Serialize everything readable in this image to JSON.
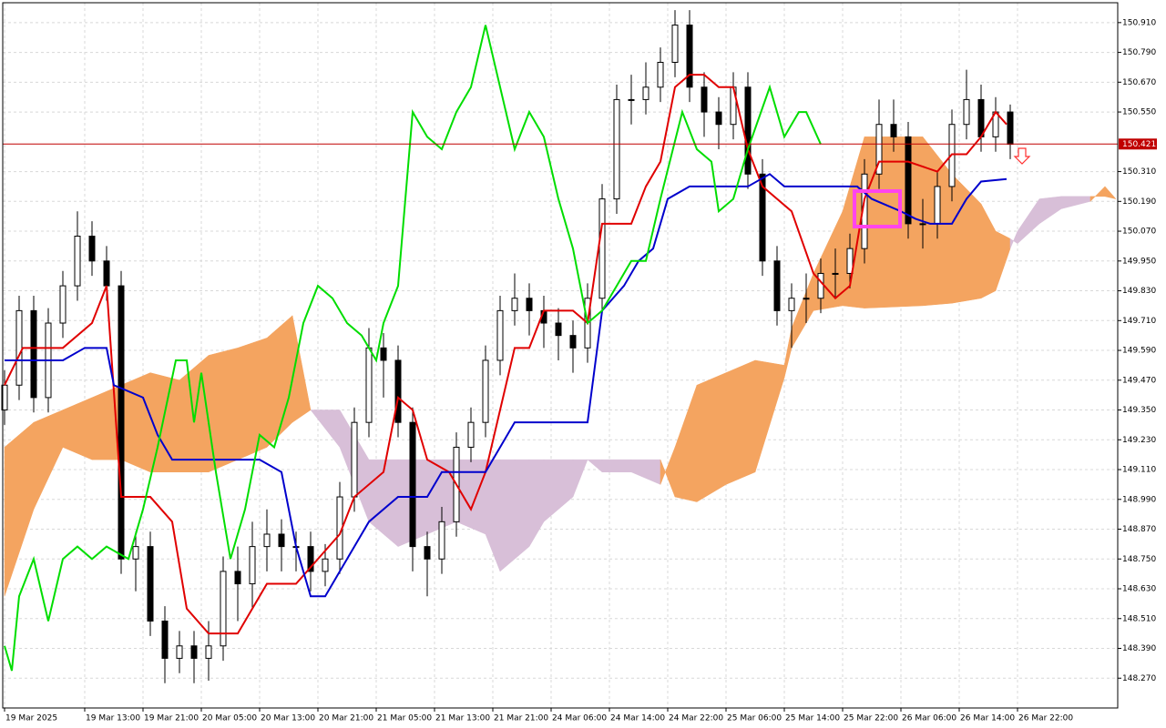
{
  "chart_data": {
    "type": "candlestick",
    "xlim": [
      -0.25,
      152.75
    ],
    "ylim": [
      148.15,
      150.99
    ],
    "grid": true,
    "yticks": [
      {
        "value": 150.91,
        "label": "150.910"
      },
      {
        "value": 150.79,
        "label": "150.790"
      },
      {
        "value": 150.67,
        "label": "150.670"
      },
      {
        "value": 150.55,
        "label": "150.550"
      },
      {
        "value": 150.31,
        "label": "150.310"
      },
      {
        "value": 150.19,
        "label": "150.190"
      },
      {
        "value": 150.07,
        "label": "150.070"
      },
      {
        "value": 149.95,
        "label": "149.950"
      },
      {
        "value": 149.83,
        "label": "149.830"
      },
      {
        "value": 149.71,
        "label": "149.710"
      },
      {
        "value": 149.59,
        "label": "149.590"
      },
      {
        "value": 149.47,
        "label": "149.470"
      },
      {
        "value": 149.35,
        "label": "149.350"
      },
      {
        "value": 149.23,
        "label": "149.230"
      },
      {
        "value": 149.11,
        "label": "149.110"
      },
      {
        "value": 148.99,
        "label": "148.990"
      },
      {
        "value": 148.87,
        "label": "148.870"
      },
      {
        "value": 148.75,
        "label": "148.750"
      },
      {
        "value": 148.63,
        "label": "148.630"
      },
      {
        "value": 148.51,
        "label": "148.510"
      },
      {
        "value": 148.39,
        "label": "148.390"
      },
      {
        "value": 148.27,
        "label": "148.270"
      }
    ],
    "xticks": [
      {
        "value": 0,
        "label": "19 Mar 2025"
      },
      {
        "value": 11,
        "label": "19 Mar 13:00"
      },
      {
        "value": 19,
        "label": "19 Mar 21:00"
      },
      {
        "value": 27,
        "label": "20 Mar 05:00"
      },
      {
        "value": 35,
        "label": "20 Mar 13:00"
      },
      {
        "value": 43,
        "label": "20 Mar 21:00"
      },
      {
        "value": 51,
        "label": "21 Mar 05:00"
      },
      {
        "value": 59,
        "label": "21 Mar 13:00"
      },
      {
        "value": 67,
        "label": "21 Mar 21:00"
      },
      {
        "value": 75,
        "label": "24 Mar 06:00"
      },
      {
        "value": 83,
        "label": "24 Mar 14:00"
      },
      {
        "value": 91,
        "label": "24 Mar 22:00"
      },
      {
        "value": 99,
        "label": "25 Mar 06:00"
      },
      {
        "value": 107,
        "label": "25 Mar 14:00"
      },
      {
        "value": 115,
        "label": "25 Mar 22:00"
      },
      {
        "value": 123,
        "label": "26 Mar 06:00"
      },
      {
        "value": 131,
        "label": "26 Mar 14:00"
      },
      {
        "value": 139,
        "label": "26 Mar 22:00"
      }
    ],
    "current_price": {
      "value": 150.421,
      "label": "150.421",
      "color": "#c00000"
    },
    "up_color": "#ffffff",
    "down_color": "#000000",
    "x": [
      0,
      2,
      4,
      6,
      8,
      10,
      12,
      14,
      16,
      18,
      20,
      22,
      24,
      26,
      28,
      30,
      32,
      34,
      36,
      38,
      40,
      42,
      44,
      46,
      48,
      50,
      52,
      54,
      56,
      58,
      60,
      62,
      64,
      66,
      68,
      70,
      72,
      74,
      76,
      78,
      80,
      82,
      84,
      86,
      88,
      90,
      92,
      94,
      96,
      98,
      100,
      102,
      104,
      106,
      108,
      110,
      112,
      114,
      116,
      118,
      120,
      122,
      124,
      126,
      128,
      130,
      132,
      134,
      136,
      138
    ],
    "open": [
      149.35,
      149.45,
      149.75,
      149.4,
      149.7,
      149.85,
      150.05,
      149.95,
      149.85,
      148.75,
      148.8,
      148.5,
      148.35,
      148.4,
      148.35,
      148.4,
      148.7,
      148.65,
      148.8,
      148.85,
      148.8,
      148.8,
      148.7,
      148.75,
      149.0,
      149.3,
      149.6,
      149.55,
      149.3,
      148.8,
      148.75,
      148.9,
      149.2,
      149.3,
      149.55,
      149.75,
      149.8,
      149.75,
      149.7,
      149.65,
      149.6,
      149.8,
      150.2,
      150.6,
      150.6,
      150.65,
      150.75,
      150.9,
      150.65,
      150.55,
      150.5,
      150.65,
      150.3,
      149.95,
      149.75,
      149.8,
      149.8,
      149.9,
      149.9,
      150.0,
      150.3,
      150.5,
      150.45,
      150.1,
      150.1,
      150.25,
      150.5,
      150.6,
      150.45,
      150.55
    ],
    "high": [
      149.51,
      149.81,
      149.81,
      149.76,
      149.91,
      150.15,
      150.11,
      150.01,
      149.91,
      148.86,
      148.86,
      148.56,
      148.46,
      148.46,
      148.5,
      148.76,
      148.8,
      148.9,
      148.95,
      148.91,
      148.86,
      148.86,
      148.81,
      149.06,
      149.36,
      149.68,
      149.66,
      149.61,
      149.36,
      148.86,
      148.96,
      149.26,
      149.36,
      149.61,
      149.81,
      149.9,
      149.86,
      149.81,
      149.76,
      149.71,
      149.86,
      150.26,
      150.66,
      150.7,
      150.75,
      150.81,
      150.96,
      150.96,
      150.71,
      150.61,
      150.71,
      150.71,
      150.36,
      150.01,
      149.86,
      149.9,
      149.96,
      150.0,
      150.06,
      150.36,
      150.6,
      150.6,
      150.51,
      150.2,
      150.31,
      150.56,
      150.72,
      150.66,
      150.61,
      150.58
    ],
    "low": [
      149.29,
      149.39,
      149.34,
      149.34,
      149.64,
      149.79,
      149.89,
      149.79,
      148.69,
      148.62,
      148.44,
      148.25,
      148.29,
      148.25,
      148.26,
      148.34,
      148.5,
      148.55,
      148.7,
      148.7,
      148.7,
      148.62,
      148.64,
      148.69,
      148.94,
      149.24,
      149.4,
      149.24,
      148.7,
      148.6,
      148.69,
      148.84,
      149.14,
      149.24,
      149.49,
      149.69,
      149.65,
      149.6,
      149.55,
      149.5,
      149.54,
      149.74,
      150.14,
      150.5,
      150.54,
      150.59,
      150.69,
      150.59,
      150.45,
      150.4,
      150.44,
      150.24,
      149.89,
      149.69,
      149.6,
      149.7,
      149.74,
      149.8,
      149.84,
      149.94,
      150.24,
      150.39,
      150.04,
      150.0,
      150.04,
      150.19,
      150.44,
      150.39,
      150.39,
      150.36
    ],
    "close": [
      149.45,
      149.75,
      149.4,
      149.7,
      149.85,
      150.05,
      149.95,
      149.85,
      148.75,
      148.8,
      148.5,
      148.35,
      148.4,
      148.35,
      148.4,
      148.7,
      148.65,
      148.8,
      148.85,
      148.8,
      148.8,
      148.7,
      148.75,
      149.0,
      149.3,
      149.6,
      149.55,
      149.3,
      148.8,
      148.75,
      148.9,
      149.2,
      149.3,
      149.55,
      149.75,
      149.8,
      149.75,
      149.7,
      149.65,
      149.6,
      149.8,
      150.2,
      150.6,
      150.6,
      150.65,
      150.75,
      150.9,
      150.65,
      150.55,
      150.5,
      150.65,
      150.3,
      149.95,
      149.75,
      149.8,
      149.8,
      149.9,
      149.9,
      150.0,
      150.3,
      150.5,
      150.45,
      150.1,
      150.1,
      150.25,
      150.5,
      150.6,
      150.45,
      150.55,
      150.42
    ],
    "cloud": {
      "up_color": "#f4a460",
      "down_color": "#d8bfd8",
      "x": [
        0,
        4,
        8,
        12,
        16,
        20,
        24,
        28,
        32,
        36,
        39.5,
        42,
        46,
        50,
        54,
        58,
        62,
        66,
        68,
        70,
        72,
        74,
        78,
        80,
        82,
        86,
        90,
        92,
        95,
        99,
        103,
        107,
        108,
        111,
        115,
        118,
        126,
        130,
        134,
        136,
        138,
        139,
        142,
        145,
        149,
        151,
        152.5
      ],
      "span_a": [
        149.2,
        149.3,
        149.35,
        149.4,
        149.45,
        149.5,
        149.47,
        149.57,
        149.6,
        149.64,
        149.73,
        149.35,
        149.2,
        148.9,
        148.8,
        148.85,
        148.9,
        148.85,
        148.7,
        148.75,
        148.8,
        148.9,
        149.0,
        149.15,
        149.1,
        149.1,
        149.05,
        149.2,
        149.45,
        149.5,
        149.55,
        149.53,
        149.68,
        149.9,
        150.15,
        150.45,
        150.45,
        150.3,
        150.18,
        150.07,
        150.04,
        150.02,
        150.1,
        150.16,
        150.19,
        150.25,
        150.2
      ],
      "span_b": [
        148.6,
        148.95,
        149.2,
        149.15,
        149.15,
        149.1,
        149.1,
        149.1,
        149.15,
        149.2,
        149.3,
        149.35,
        149.35,
        149.15,
        149.15,
        149.15,
        149.15,
        149.15,
        149.15,
        149.15,
        149.15,
        149.15,
        149.15,
        149.15,
        149.15,
        149.15,
        149.15,
        149.0,
        148.98,
        149.05,
        149.1,
        149.48,
        149.6,
        149.75,
        149.77,
        149.76,
        149.77,
        149.78,
        149.8,
        149.83,
        150.0,
        150.07,
        150.2,
        150.21,
        150.21,
        150.21,
        150.2
      ]
    },
    "lines": [
      {
        "color": "#e00000",
        "x": [
          0,
          2.5,
          8,
          12,
          14,
          16,
          20,
          23,
          25,
          28,
          32,
          36,
          40,
          43,
          46,
          48,
          52,
          54,
          56,
          58,
          61,
          64,
          66,
          68,
          70,
          72,
          74,
          78,
          80,
          82,
          86,
          88,
          90,
          92,
          94,
          96,
          98,
          100,
          102,
          104,
          108,
          111,
          114,
          116,
          118,
          120,
          124,
          128,
          130,
          132,
          134,
          136,
          137.5
        ],
        "values": [
          149.45,
          149.6,
          149.6,
          149.7,
          149.85,
          149.0,
          149.0,
          148.9,
          148.55,
          148.45,
          148.45,
          148.65,
          148.65,
          148.75,
          148.85,
          149.0,
          149.1,
          149.4,
          149.35,
          149.15,
          149.1,
          148.95,
          149.1,
          149.35,
          149.6,
          149.6,
          149.75,
          149.75,
          149.7,
          150.1,
          150.1,
          150.25,
          150.35,
          150.65,
          150.7,
          150.7,
          150.65,
          150.65,
          150.4,
          150.25,
          150.15,
          149.9,
          149.8,
          149.85,
          150.2,
          150.35,
          150.35,
          150.31,
          150.38,
          150.38,
          150.45,
          150.55,
          150.5
        ]
      },
      {
        "color": "#0000cc",
        "x": [
          0,
          4,
          8,
          11,
          14,
          15,
          19,
          21,
          23,
          35,
          38,
          40,
          42,
          44,
          46,
          48,
          50,
          54,
          58,
          60,
          66,
          68,
          70,
          80,
          82,
          85,
          87,
          89,
          91,
          94,
          100,
          102,
          105,
          107,
          117,
          119,
          123,
          125,
          127,
          130,
          132,
          134,
          137.5
        ],
        "values": [
          149.55,
          149.55,
          149.55,
          149.6,
          149.6,
          149.45,
          149.4,
          149.25,
          149.15,
          149.15,
          149.1,
          148.8,
          148.6,
          148.6,
          148.7,
          148.8,
          148.9,
          149.0,
          149.0,
          149.1,
          149.1,
          149.2,
          149.3,
          149.3,
          149.75,
          149.85,
          149.95,
          150.0,
          150.2,
          150.25,
          150.25,
          150.25,
          150.3,
          150.25,
          150.25,
          150.2,
          150.15,
          150.12,
          150.1,
          150.1,
          150.2,
          150.27,
          150.28
        ]
      },
      {
        "color": "#00dd00",
        "x": [
          0,
          1,
          2,
          4,
          6,
          8,
          10,
          12,
          14,
          17,
          19,
          21,
          23.5,
          25,
          26,
          27,
          29,
          31,
          33,
          35,
          37,
          39,
          41,
          43,
          45,
          47,
          49,
          51,
          52,
          54,
          56,
          58,
          60,
          62,
          64,
          66,
          68,
          70,
          72,
          74,
          76,
          78,
          80,
          82,
          84,
          86,
          88,
          90,
          93,
          95,
          97,
          98,
          100,
          102,
          105,
          107,
          109,
          110,
          112
        ],
        "values": [
          148.4,
          148.3,
          148.6,
          148.75,
          148.5,
          148.75,
          148.8,
          148.75,
          148.8,
          148.75,
          148.95,
          149.2,
          149.55,
          149.55,
          149.3,
          149.5,
          149.1,
          148.75,
          148.95,
          149.25,
          149.2,
          149.4,
          149.7,
          149.85,
          149.8,
          149.7,
          149.65,
          149.55,
          149.7,
          149.85,
          150.55,
          150.45,
          150.4,
          150.55,
          150.65,
          150.9,
          150.65,
          150.4,
          150.55,
          150.45,
          150.2,
          150.0,
          149.7,
          149.75,
          149.85,
          149.95,
          149.95,
          150.2,
          150.55,
          150.4,
          150.35,
          150.15,
          150.2,
          150.4,
          150.65,
          150.45,
          150.55,
          150.55,
          150.42
        ]
      }
    ]
  }
}
